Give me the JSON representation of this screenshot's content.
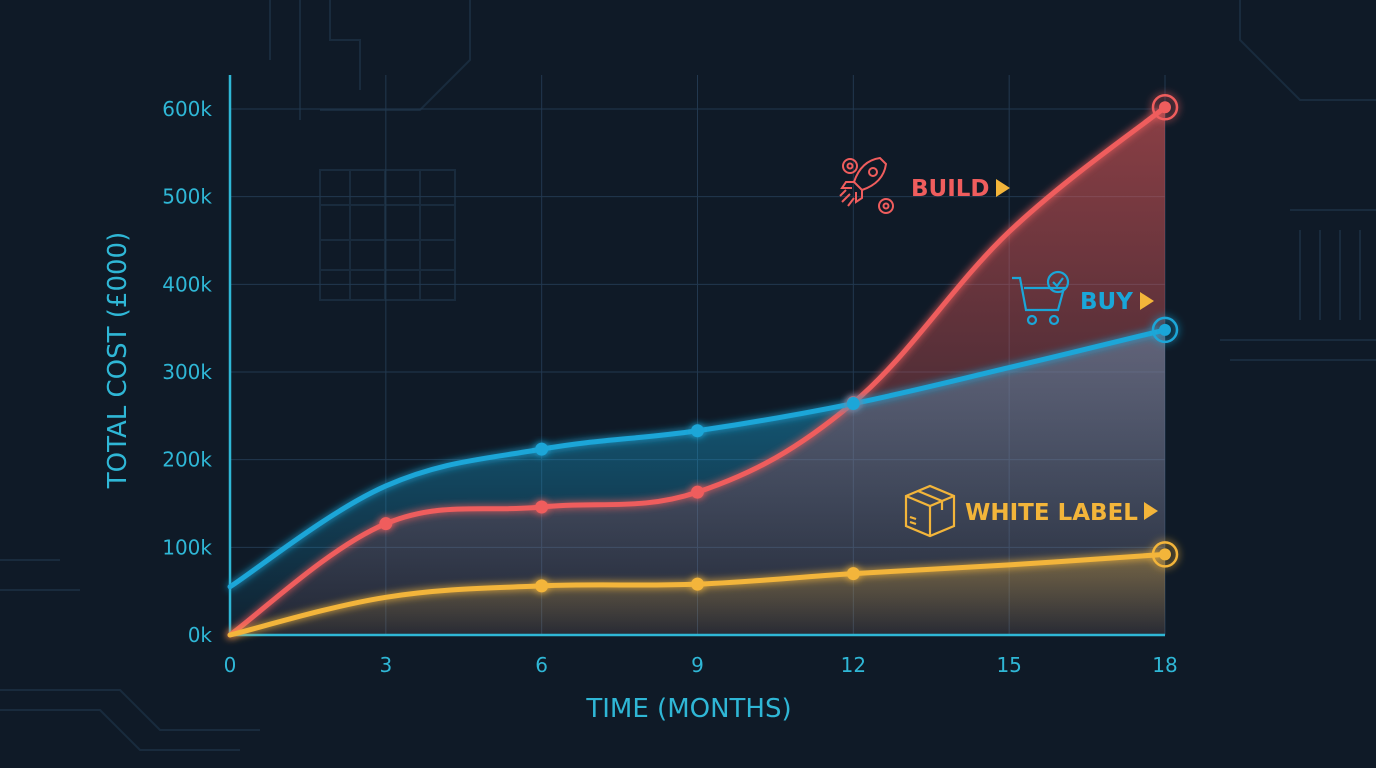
{
  "colors": {
    "background": "#0f1a27",
    "axis": "#2fb7d6",
    "grid": "#22384f",
    "build": "#ef5d5d",
    "buy": "#1aa6d8",
    "white_label": "#f3b53a",
    "label_arrow": "#f3b53a"
  },
  "chart_data": {
    "type": "line",
    "title": "",
    "xlabel": "TIME (MONTHS)",
    "ylabel": "TOTAL COST (£000)",
    "x_ticks": [
      "0",
      "3",
      "6",
      "9",
      "12",
      "15",
      "18"
    ],
    "y_ticks": [
      "0k",
      "100k",
      "200k",
      "300k",
      "400k",
      "500k",
      "600k"
    ],
    "xlim": [
      0,
      18
    ],
    "ylim": [
      0,
      600
    ],
    "grid": true,
    "series": [
      {
        "name": "BUILD",
        "color": "#ef5d5d",
        "icon": "rocket-gears-icon",
        "x": [
          0,
          3,
          6,
          9,
          12,
          15,
          18
        ],
        "y": [
          0,
          127,
          146,
          163,
          265,
          460,
          602
        ],
        "markers": [
          3,
          6,
          9,
          12
        ],
        "end_marker": true
      },
      {
        "name": "BUY",
        "color": "#1aa6d8",
        "icon": "shopping-cart-check-icon",
        "x": [
          0,
          3,
          6,
          9,
          12,
          15,
          18
        ],
        "y": [
          55,
          170,
          212,
          233,
          264,
          305,
          348
        ],
        "markers": [
          6,
          9,
          12
        ],
        "end_marker": true
      },
      {
        "name": "WHITE LABEL",
        "color": "#f3b53a",
        "icon": "package-box-icon",
        "x": [
          0,
          3,
          6,
          9,
          12,
          15,
          18
        ],
        "y": [
          0,
          43,
          56,
          58,
          70,
          80,
          92
        ],
        "markers": [
          6,
          9,
          12
        ],
        "end_marker": true
      }
    ]
  }
}
